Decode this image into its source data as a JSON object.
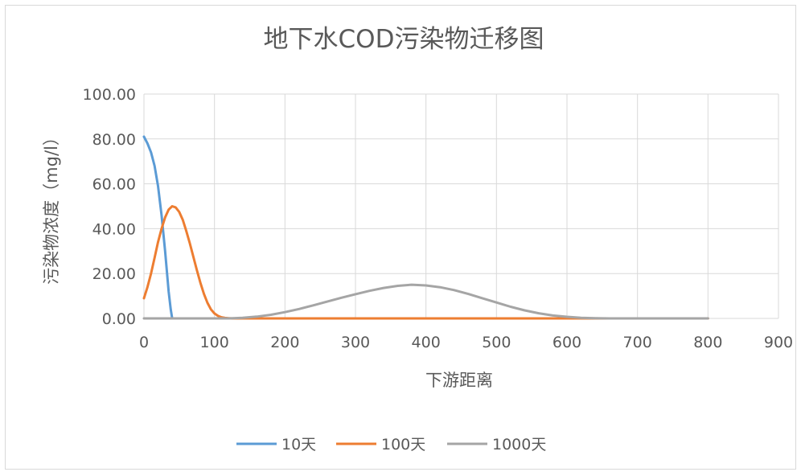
{
  "chart_data": {
    "type": "line",
    "title": "地下水COD污染物迁移图",
    "xlabel": "下游距离",
    "ylabel": "污染物浓度（mg/l）",
    "xlim": [
      0,
      900
    ],
    "ylim": [
      0,
      100
    ],
    "x_ticks": [
      "0",
      "100",
      "200",
      "300",
      "400",
      "500",
      "600",
      "700",
      "800",
      "900"
    ],
    "y_ticks": [
      "0.00",
      "20.00",
      "40.00",
      "60.00",
      "80.00",
      "100.00"
    ],
    "grid": true,
    "legend_position": "bottom",
    "series": [
      {
        "name": "10天",
        "color": "#5b9bd5",
        "points": [
          [
            0,
            81
          ],
          [
            5,
            78
          ],
          [
            10,
            74
          ],
          [
            15,
            68
          ],
          [
            20,
            59
          ],
          [
            25,
            46
          ],
          [
            30,
            30
          ],
          [
            35,
            12
          ],
          [
            38,
            4
          ],
          [
            40,
            0
          ]
        ]
      },
      {
        "name": "100天",
        "color": "#ed7d31",
        "points": [
          [
            0,
            9
          ],
          [
            5,
            14
          ],
          [
            10,
            20
          ],
          [
            15,
            27
          ],
          [
            20,
            34
          ],
          [
            25,
            40
          ],
          [
            30,
            45
          ],
          [
            35,
            48.5
          ],
          [
            40,
            50
          ],
          [
            45,
            49.5
          ],
          [
            50,
            47.5
          ],
          [
            55,
            44
          ],
          [
            60,
            39
          ],
          [
            65,
            33.5
          ],
          [
            70,
            27.5
          ],
          [
            75,
            21.5
          ],
          [
            80,
            16
          ],
          [
            85,
            11
          ],
          [
            90,
            7
          ],
          [
            95,
            4
          ],
          [
            100,
            2.2
          ],
          [
            105,
            1.1
          ],
          [
            110,
            0.5
          ],
          [
            115,
            0.2
          ],
          [
            120,
            0.1
          ],
          [
            125,
            0
          ],
          [
            800,
            0
          ]
        ]
      },
      {
        "name": "1000天",
        "color": "#a5a5a5",
        "points": [
          [
            0,
            0
          ],
          [
            120,
            0
          ],
          [
            140,
            0.3
          ],
          [
            160,
            0.8
          ],
          [
            180,
            1.6
          ],
          [
            200,
            2.8
          ],
          [
            220,
            4.2
          ],
          [
            240,
            5.8
          ],
          [
            260,
            7.5
          ],
          [
            280,
            9.2
          ],
          [
            300,
            10.8
          ],
          [
            320,
            12.3
          ],
          [
            340,
            13.6
          ],
          [
            360,
            14.5
          ],
          [
            380,
            15
          ],
          [
            400,
            14.7
          ],
          [
            420,
            13.9
          ],
          [
            440,
            12.6
          ],
          [
            460,
            10.9
          ],
          [
            480,
            9
          ],
          [
            500,
            7.1
          ],
          [
            520,
            5.2
          ],
          [
            540,
            3.6
          ],
          [
            560,
            2.3
          ],
          [
            580,
            1.3
          ],
          [
            600,
            0.7
          ],
          [
            620,
            0.3
          ],
          [
            640,
            0.1
          ],
          [
            660,
            0
          ],
          [
            800,
            0
          ]
        ]
      }
    ]
  }
}
